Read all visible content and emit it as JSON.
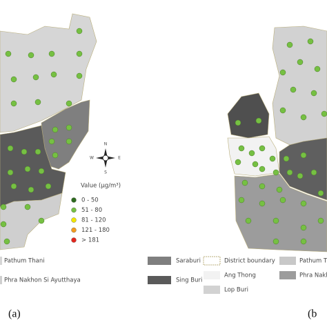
{
  "compass": {
    "n": "N",
    "s": "S",
    "e": "E",
    "w": "W"
  },
  "value_legend": {
    "title": "Value (μg/m³)",
    "items": [
      {
        "label": "0 - 50",
        "color": "#2e6b1f"
      },
      {
        "label": "51 - 80",
        "color": "#76c043"
      },
      {
        "label": "81 - 120",
        "color": "#f2e600"
      },
      {
        "label": "121 - 180",
        "color": "#f39c1f"
      },
      {
        "label": "> 181",
        "color": "#e3261e"
      }
    ]
  },
  "panel_a": {
    "label": "(a)",
    "legend": [
      "Pathum Thani",
      "Phra Nakhon Si Ayutthaya",
      "Saraburi",
      "Sing Buri"
    ]
  },
  "panel_b": {
    "label": "(b",
    "legend": [
      "District boundary",
      "Ang Thong",
      "Lop Buri",
      "Pathum Th",
      "Phra Nakh"
    ]
  }
}
